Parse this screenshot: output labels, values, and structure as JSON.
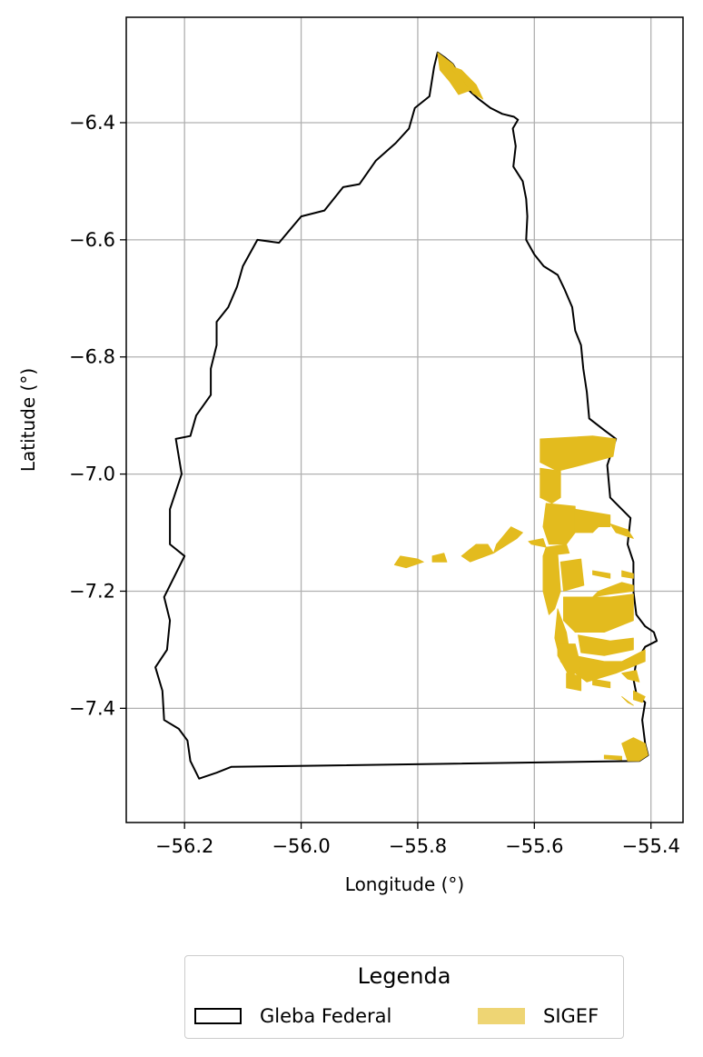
{
  "map": {
    "xlabel": "Longitude (°)",
    "ylabel": "Latitude (°)",
    "xlim": [
      -56.3,
      -55.345
    ],
    "ylim": [
      -7.595,
      -6.22
    ],
    "xticks": [
      -56.2,
      -56.0,
      -55.8,
      -55.6,
      -55.4
    ],
    "yticks": [
      -6.4,
      -6.6,
      -6.8,
      -7.0,
      -7.2,
      -7.4
    ],
    "xtick_labels": [
      "−56.2",
      "−56.0",
      "−55.8",
      "−55.6",
      "−55.4"
    ],
    "ytick_labels": [
      "−6.4",
      "−6.6",
      "−6.8",
      "−7.0",
      "−7.2",
      "−7.4"
    ],
    "grid": true,
    "colors": {
      "gleba_edge": "#000000",
      "sigef_fill": "#e3bb1e",
      "grid": "#b0b0b0"
    }
  },
  "layers": {
    "gleba": {
      "name": "Gleba Federal",
      "boundary": [
        [
          -55.766,
          -6.28
        ],
        [
          -55.752,
          -6.29
        ],
        [
          -55.74,
          -6.3
        ],
        [
          -55.728,
          -6.32
        ],
        [
          -55.712,
          -6.345
        ],
        [
          -55.695,
          -6.36
        ],
        [
          -55.675,
          -6.375
        ],
        [
          -55.655,
          -6.385
        ],
        [
          -55.635,
          -6.39
        ],
        [
          -55.628,
          -6.395
        ],
        [
          -55.637,
          -6.41
        ],
        [
          -55.632,
          -6.44
        ],
        [
          -55.636,
          -6.475
        ],
        [
          -55.62,
          -6.5
        ],
        [
          -55.614,
          -6.53
        ],
        [
          -55.612,
          -6.56
        ],
        [
          -55.614,
          -6.6
        ],
        [
          -55.6,
          -6.625
        ],
        [
          -55.584,
          -6.645
        ],
        [
          -55.56,
          -6.66
        ],
        [
          -55.548,
          -6.685
        ],
        [
          -55.535,
          -6.715
        ],
        [
          -55.53,
          -6.755
        ],
        [
          -55.52,
          -6.78
        ],
        [
          -55.516,
          -6.82
        ],
        [
          -55.51,
          -6.86
        ],
        [
          -55.506,
          -6.905
        ],
        [
          -55.48,
          -6.925
        ],
        [
          -55.46,
          -6.94
        ],
        [
          -55.475,
          -6.985
        ],
        [
          -55.47,
          -7.04
        ],
        [
          -55.45,
          -7.06
        ],
        [
          -55.435,
          -7.075
        ],
        [
          -55.44,
          -7.12
        ],
        [
          -55.43,
          -7.15
        ],
        [
          -55.43,
          -7.2
        ],
        [
          -55.425,
          -7.24
        ],
        [
          -55.41,
          -7.26
        ],
        [
          -55.395,
          -7.27
        ],
        [
          -55.39,
          -7.285
        ],
        [
          -55.41,
          -7.295
        ],
        [
          -55.425,
          -7.32
        ],
        [
          -55.43,
          -7.35
        ],
        [
          -55.425,
          -7.375
        ],
        [
          -55.41,
          -7.39
        ],
        [
          -55.415,
          -7.42
        ],
        [
          -55.41,
          -7.46
        ],
        [
          -55.405,
          -7.48
        ],
        [
          -55.42,
          -7.49
        ],
        [
          -56.12,
          -7.5
        ],
        [
          -56.145,
          -7.51
        ],
        [
          -56.175,
          -7.52
        ],
        [
          -56.19,
          -7.49
        ],
        [
          -56.195,
          -7.455
        ],
        [
          -56.21,
          -7.435
        ],
        [
          -56.235,
          -7.42
        ],
        [
          -56.238,
          -7.37
        ],
        [
          -56.25,
          -7.33
        ],
        [
          -56.23,
          -7.3
        ],
        [
          -56.225,
          -7.25
        ],
        [
          -56.235,
          -7.21
        ],
        [
          -56.215,
          -7.17
        ],
        [
          -56.2,
          -7.14
        ],
        [
          -56.225,
          -7.12
        ],
        [
          -56.225,
          -7.06
        ],
        [
          -56.205,
          -7.0
        ],
        [
          -56.215,
          -6.94
        ],
        [
          -56.19,
          -6.935
        ],
        [
          -56.18,
          -6.9
        ],
        [
          -56.155,
          -6.865
        ],
        [
          -56.155,
          -6.82
        ],
        [
          -56.145,
          -6.78
        ],
        [
          -56.145,
          -6.74
        ],
        [
          -56.125,
          -6.715
        ],
        [
          -56.11,
          -6.68
        ],
        [
          -56.1,
          -6.645
        ],
        [
          -56.075,
          -6.6
        ],
        [
          -56.038,
          -6.605
        ],
        [
          -56.0,
          -6.56
        ],
        [
          -55.96,
          -6.55
        ],
        [
          -55.928,
          -6.51
        ],
        [
          -55.9,
          -6.505
        ],
        [
          -55.872,
          -6.465
        ],
        [
          -55.838,
          -6.435
        ],
        [
          -55.815,
          -6.41
        ],
        [
          -55.805,
          -6.375
        ],
        [
          -55.78,
          -6.355
        ],
        [
          -55.772,
          -6.305
        ],
        [
          -55.766,
          -6.28
        ]
      ]
    },
    "sigef": {
      "name": "SIGEF",
      "parcels": [
        [
          [
            -55.766,
            -6.28
          ],
          [
            -55.74,
            -6.3
          ],
          [
            -55.728,
            -6.32
          ],
          [
            -55.71,
            -6.345
          ],
          [
            -55.73,
            -6.352
          ],
          [
            -55.745,
            -6.33
          ],
          [
            -55.762,
            -6.31
          ]
        ],
        [
          [
            -55.752,
            -6.3
          ],
          [
            -55.72,
            -6.33
          ],
          [
            -55.705,
            -6.35
          ],
          [
            -55.688,
            -6.36
          ],
          [
            -55.7,
            -6.335
          ],
          [
            -55.725,
            -6.31
          ]
        ],
        [
          [
            -55.59,
            -6.94
          ],
          [
            -55.5,
            -6.935
          ],
          [
            -55.46,
            -6.94
          ],
          [
            -55.465,
            -6.97
          ],
          [
            -55.52,
            -6.985
          ],
          [
            -55.56,
            -6.995
          ],
          [
            -55.59,
            -6.98
          ]
        ],
        [
          [
            -55.59,
            -6.99
          ],
          [
            -55.555,
            -6.995
          ],
          [
            -55.555,
            -7.04
          ],
          [
            -55.57,
            -7.05
          ],
          [
            -55.59,
            -7.04
          ]
        ],
        [
          [
            -55.58,
            -7.05
          ],
          [
            -55.53,
            -7.055
          ],
          [
            -55.53,
            -7.1
          ],
          [
            -55.545,
            -7.12
          ],
          [
            -55.575,
            -7.12
          ],
          [
            -55.585,
            -7.09
          ]
        ],
        [
          [
            -55.53,
            -7.1
          ],
          [
            -55.5,
            -7.1
          ],
          [
            -55.49,
            -7.09
          ],
          [
            -55.47,
            -7.09
          ],
          [
            -55.47,
            -7.07
          ],
          [
            -55.53,
            -7.06
          ]
        ],
        [
          [
            -55.47,
            -7.085
          ],
          [
            -55.44,
            -7.095
          ],
          [
            -55.43,
            -7.11
          ],
          [
            -55.46,
            -7.1
          ]
        ],
        [
          [
            -55.58,
            -7.125
          ],
          [
            -55.545,
            -7.12
          ],
          [
            -55.54,
            -7.135
          ],
          [
            -55.585,
            -7.14
          ]
        ],
        [
          [
            -55.83,
            -7.14
          ],
          [
            -55.8,
            -7.145
          ],
          [
            -55.79,
            -7.15
          ],
          [
            -55.82,
            -7.16
          ],
          [
            -55.84,
            -7.155
          ]
        ],
        [
          [
            -55.775,
            -7.14
          ],
          [
            -55.755,
            -7.135
          ],
          [
            -55.75,
            -7.15
          ],
          [
            -55.775,
            -7.15
          ]
        ],
        [
          [
            -55.725,
            -7.14
          ],
          [
            -55.7,
            -7.12
          ],
          [
            -55.68,
            -7.12
          ],
          [
            -55.67,
            -7.135
          ],
          [
            -55.71,
            -7.15
          ]
        ],
        [
          [
            -55.67,
            -7.135
          ],
          [
            -55.63,
            -7.11
          ],
          [
            -55.62,
            -7.1
          ],
          [
            -55.64,
            -7.09
          ],
          [
            -55.665,
            -7.12
          ]
        ],
        [
          [
            -55.61,
            -7.115
          ],
          [
            -55.585,
            -7.11
          ],
          [
            -55.58,
            -7.125
          ],
          [
            -55.605,
            -7.12
          ]
        ],
        [
          [
            -55.585,
            -7.14
          ],
          [
            -55.56,
            -7.135
          ],
          [
            -55.555,
            -7.2
          ],
          [
            -55.565,
            -7.23
          ],
          [
            -55.575,
            -7.24
          ],
          [
            -55.585,
            -7.2
          ]
        ],
        [
          [
            -55.555,
            -7.15
          ],
          [
            -55.52,
            -7.145
          ],
          [
            -55.515,
            -7.19
          ],
          [
            -55.55,
            -7.2
          ]
        ],
        [
          [
            -55.5,
            -7.165
          ],
          [
            -55.47,
            -7.17
          ],
          [
            -55.47,
            -7.178
          ],
          [
            -55.5,
            -7.172
          ]
        ],
        [
          [
            -55.45,
            -7.165
          ],
          [
            -55.43,
            -7.17
          ],
          [
            -55.43,
            -7.178
          ],
          [
            -55.45,
            -7.175
          ]
        ],
        [
          [
            -55.49,
            -7.2
          ],
          [
            -55.45,
            -7.185
          ],
          [
            -55.43,
            -7.19
          ],
          [
            -55.43,
            -7.2
          ],
          [
            -55.47,
            -7.205
          ],
          [
            -55.5,
            -7.21
          ]
        ],
        [
          [
            -55.55,
            -7.21
          ],
          [
            -55.47,
            -7.21
          ],
          [
            -55.43,
            -7.205
          ],
          [
            -55.43,
            -7.25
          ],
          [
            -55.48,
            -7.27
          ],
          [
            -55.53,
            -7.27
          ],
          [
            -55.55,
            -7.25
          ]
        ],
        [
          [
            -55.56,
            -7.23
          ],
          [
            -55.545,
            -7.27
          ],
          [
            -55.54,
            -7.3
          ],
          [
            -55.52,
            -7.33
          ],
          [
            -55.535,
            -7.345
          ],
          [
            -55.555,
            -7.32
          ],
          [
            -55.565,
            -7.28
          ]
        ],
        [
          [
            -55.525,
            -7.275
          ],
          [
            -55.47,
            -7.285
          ],
          [
            -55.43,
            -7.28
          ],
          [
            -55.43,
            -7.3
          ],
          [
            -55.48,
            -7.31
          ],
          [
            -55.52,
            -7.305
          ]
        ],
        [
          [
            -55.53,
            -7.31
          ],
          [
            -55.48,
            -7.32
          ],
          [
            -55.45,
            -7.32
          ],
          [
            -55.41,
            -7.3
          ],
          [
            -55.41,
            -7.32
          ],
          [
            -55.46,
            -7.34
          ],
          [
            -55.51,
            -7.355
          ],
          [
            -55.53,
            -7.34
          ]
        ],
        [
          [
            -55.56,
            -7.29
          ],
          [
            -55.53,
            -7.29
          ],
          [
            -55.52,
            -7.33
          ],
          [
            -55.54,
            -7.345
          ],
          [
            -55.56,
            -7.31
          ]
        ],
        [
          [
            -55.5,
            -7.35
          ],
          [
            -55.47,
            -7.355
          ],
          [
            -55.47,
            -7.365
          ],
          [
            -55.5,
            -7.36
          ]
        ],
        [
          [
            -55.545,
            -7.34
          ],
          [
            -55.52,
            -7.345
          ],
          [
            -55.52,
            -7.37
          ],
          [
            -55.545,
            -7.365
          ]
        ],
        [
          [
            -55.45,
            -7.34
          ],
          [
            -55.425,
            -7.335
          ],
          [
            -55.42,
            -7.355
          ],
          [
            -55.44,
            -7.35
          ]
        ],
        [
          [
            -55.43,
            -7.37
          ],
          [
            -55.41,
            -7.38
          ],
          [
            -55.415,
            -7.39
          ],
          [
            -55.43,
            -7.385
          ]
        ],
        [
          [
            -55.45,
            -7.38
          ],
          [
            -55.43,
            -7.395
          ],
          [
            -55.44,
            -7.39
          ]
        ],
        [
          [
            -55.43,
            -7.45
          ],
          [
            -55.41,
            -7.46
          ],
          [
            -55.405,
            -7.48
          ],
          [
            -55.42,
            -7.49
          ],
          [
            -55.44,
            -7.49
          ],
          [
            -55.45,
            -7.46
          ]
        ],
        [
          [
            -55.48,
            -7.48
          ],
          [
            -55.45,
            -7.482
          ],
          [
            -55.45,
            -7.488
          ],
          [
            -55.48,
            -7.486
          ]
        ]
      ]
    }
  },
  "legend": {
    "title": "Legenda",
    "items": [
      {
        "label": "Gleba Federal"
      },
      {
        "label": "SIGEF"
      }
    ]
  }
}
